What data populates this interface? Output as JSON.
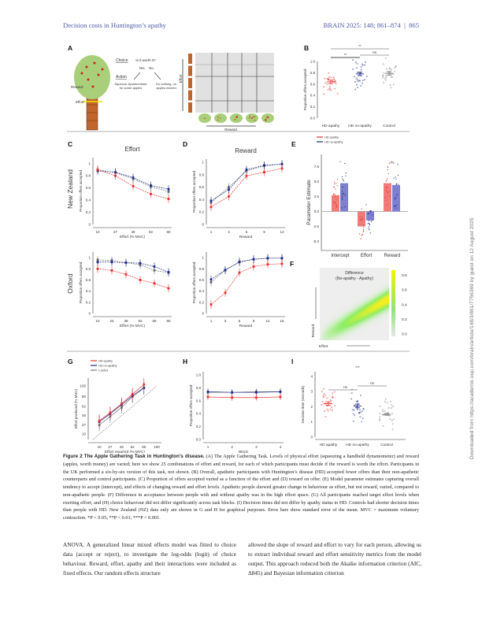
{
  "header": {
    "running_title": "Decision costs in Huntington’s apathy",
    "journal": "BRAIN 2025: 148; 861–874",
    "separator": "|",
    "page": "865"
  },
  "side_note": "Downloaded from https://academic.oup.com/brain/article/148/3/861/7756369 by guest on 12 August 2025",
  "colors": {
    "apathy": "#e8312f",
    "no_apathy": "#1f2a8a",
    "control": "#7a7a7a",
    "header": "#4f5aa8"
  },
  "legend": [
    "HD apathy",
    "HD no-apathy",
    "Control"
  ],
  "panel_letters": [
    "A",
    "B",
    "C",
    "D",
    "E",
    "F",
    "G",
    "H",
    "I"
  ],
  "panel_a": {
    "choice": "Choice",
    "question": "Is it worth it?",
    "yes": "Yes",
    "no": "No",
    "action": "Action",
    "action_yes": "Squeeze dynamometer for some apples",
    "action_no": "Do nothing, no apples earned",
    "reward": "Reward",
    "effort": "Effort",
    "grid_effort": "Effort",
    "grid_reward": "Reward"
  },
  "row_labels": {
    "nz": "New Zealand",
    "oxford": "Oxford"
  },
  "chart_data": [
    {
      "id": "B",
      "type": "scatter",
      "ylabel": "Proportion offers accepted",
      "ylim": [
        0,
        1
      ],
      "yticks": [
        "0.0",
        "0.2",
        "0.4",
        "0.6",
        "0.8",
        "1.0"
      ],
      "categories": [
        "HD apathy",
        "HD no-apathy",
        "Control"
      ],
      "means": [
        0.64,
        0.78,
        0.79
      ],
      "sem": [
        0.03,
        0.03,
        0.03
      ],
      "significance": [
        {
          "pair": [
            0,
            2
          ],
          "label": "**"
        },
        {
          "pair": [
            0,
            1
          ],
          "label": "**"
        },
        {
          "pair": [
            1,
            2
          ],
          "label": "ns"
        }
      ]
    },
    {
      "id": "C-NZ",
      "type": "line",
      "title": "Effort",
      "xlabel": "Effort (% MVC)",
      "ylabel": "Proportion offers accepted",
      "x": [
        10,
        27,
        45,
        62,
        80
      ],
      "ylim": [
        0,
        1.1
      ],
      "yticks": [
        "0",
        "0.2",
        "0.4",
        "0.6",
        "0.8",
        "1"
      ],
      "series": [
        {
          "name": "HD apathy",
          "values": [
            0.9,
            0.8,
            0.63,
            0.5,
            0.42
          ]
        },
        {
          "name": "HD no-apathy",
          "values": [
            0.88,
            0.86,
            0.77,
            0.64,
            0.58
          ]
        },
        {
          "name": "Control",
          "values": [
            0.9,
            0.85,
            0.75,
            0.62,
            0.54
          ]
        }
      ]
    },
    {
      "id": "D-NZ",
      "type": "line",
      "title": "Reward",
      "xlabel": "Reward",
      "ylabel": "Proportion offers accepted",
      "x": [
        1,
        3,
        6,
        9,
        12
      ],
      "ylim": [
        0,
        1.05
      ],
      "yticks": [
        "0",
        "0.2",
        "0.4",
        "0.6",
        "0.8",
        "1"
      ],
      "series": [
        {
          "name": "HD apathy",
          "values": [
            0.28,
            0.45,
            0.78,
            0.84,
            0.9
          ]
        },
        {
          "name": "HD no-apathy",
          "values": [
            0.38,
            0.56,
            0.88,
            0.95,
            0.97
          ]
        },
        {
          "name": "Control",
          "values": [
            0.35,
            0.6,
            0.86,
            0.94,
            0.97
          ]
        }
      ]
    },
    {
      "id": "E",
      "type": "bar",
      "ylabel": "Parameter Estimate",
      "categories": [
        "Intercept",
        "Effort",
        "Reward"
      ],
      "ylim": [
        -6.5,
        9.5
      ],
      "yticks": [
        "-5.0",
        "-2.5",
        "0.0",
        "2.5",
        "5.0",
        "7.5"
      ],
      "series": [
        {
          "name": "HD apathy",
          "values": [
            2.7,
            -2.5,
            4.7
          ]
        },
        {
          "name": "HD no-apathy",
          "values": [
            4.7,
            -1.5,
            4.4
          ]
        }
      ],
      "significance": [
        "*",
        "*",
        "ns"
      ]
    },
    {
      "id": "C-Oxford",
      "type": "line",
      "xlabel": "Effort (% MVC)",
      "ylabel": "Proportion offers accepted",
      "x": [
        10,
        24,
        38,
        52,
        66,
        80
      ],
      "ylim": [
        0,
        1.1
      ],
      "yticks": [
        "0",
        "0.2",
        "0.4",
        "0.6",
        "0.8",
        "1"
      ],
      "series": [
        {
          "name": "HD apathy",
          "values": [
            0.8,
            0.77,
            0.7,
            0.6,
            0.54,
            0.45
          ]
        },
        {
          "name": "HD no-apathy",
          "values": [
            0.92,
            0.92,
            0.91,
            0.9,
            0.84,
            0.74
          ]
        },
        {
          "name": "Control",
          "values": [
            0.96,
            0.95,
            0.91,
            0.87,
            0.77,
            0.73
          ]
        }
      ]
    },
    {
      "id": "D-Oxford",
      "type": "line",
      "xlabel": "Reward",
      "ylabel": "Proportion offers accepted",
      "x": [
        1,
        3,
        6,
        9,
        12,
        15
      ],
      "ylim": [
        0,
        1.1
      ],
      "yticks": [
        "0",
        "0.2",
        "0.4",
        "0.6",
        "0.8",
        "1"
      ],
      "series": [
        {
          "name": "HD apathy",
          "values": [
            0.16,
            0.37,
            0.73,
            0.84,
            0.88,
            0.89
          ]
        },
        {
          "name": "HD no-apathy",
          "values": [
            0.61,
            0.78,
            0.92,
            0.97,
            0.99,
            0.99
          ]
        },
        {
          "name": "Control",
          "values": [
            0.56,
            0.77,
            0.93,
            0.97,
            0.99,
            0.99
          ]
        }
      ]
    },
    {
      "id": "F",
      "type": "heatmap",
      "title": "Difference",
      "subtitle": "(No-apathy - Apathy)",
      "xlabel": "Effort",
      "ylabel": "Reward",
      "colorbar_ticks": [
        "0.0",
        "0.2",
        "0.4",
        "0.6",
        "0.8"
      ],
      "zlim": [
        0,
        0.85
      ]
    },
    {
      "id": "G",
      "type": "line",
      "xlabel": "Effort required (% MVC)",
      "ylabel": "Effort produced (% MVC)",
      "x": [
        10,
        27,
        45,
        62,
        80
      ],
      "xticks": [
        "10",
        "27",
        "45",
        "62",
        "80",
        "100"
      ],
      "yticks": [
        "10",
        "27",
        "45",
        "62",
        "80",
        "100"
      ],
      "xlim": [
        0,
        105
      ],
      "ylim": [
        0,
        115
      ],
      "series": [
        {
          "name": "HD apathy",
          "values": [
            35,
            50,
            67,
            85,
            103
          ]
        },
        {
          "name": "HD no-apathy",
          "values": [
            33,
            48,
            65,
            82,
            97
          ]
        },
        {
          "name": "Control",
          "values": [
            27,
            43,
            60,
            80,
            96
          ]
        }
      ]
    },
    {
      "id": "H",
      "type": "line",
      "xlabel": "Block",
      "ylabel": "Proportion offers accepted",
      "x": [
        1,
        2,
        3,
        4
      ],
      "ylim": [
        0,
        1.05
      ],
      "yticks": [
        "0.0",
        "0.2",
        "0.4",
        "0.6",
        "0.8",
        "1.0"
      ],
      "series": [
        {
          "name": "HD apathy",
          "values": [
            0.66,
            0.65,
            0.65,
            0.66
          ]
        },
        {
          "name": "HD no-apathy",
          "values": [
            0.74,
            0.73,
            0.73,
            0.74
          ]
        },
        {
          "name": "Control",
          "values": [
            0.73,
            0.73,
            0.74,
            0.74
          ]
        }
      ]
    },
    {
      "id": "I",
      "type": "scatter",
      "ylabel": "Decision time (seconds)",
      "ylim": [
        0,
        4.3
      ],
      "yticks": [
        "0",
        "1",
        "2",
        "3",
        "4"
      ],
      "categories": [
        "HD apathy",
        "HD no-apathy",
        "Control"
      ],
      "means": [
        2.2,
        2.05,
        1.5
      ],
      "sem": [
        0.12,
        0.12,
        0.06
      ],
      "significance": [
        {
          "pair": [
            0,
            1
          ],
          "label": "ns"
        },
        {
          "pair": [
            1,
            2
          ],
          "label": "ns"
        },
        {
          "pair": [
            1,
            1
          ],
          "label": "***"
        }
      ]
    }
  ],
  "caption": {
    "title": "Figure 2  The Apple Gathering Task in Huntington’s disease.",
    "text": " (A) The Apple Gathering Task. Levels of physical effort (squeezing a handheld dynamometer) and reward (apples, worth money) are varied; here we show 25 combinations of effort and reward, for each of which participants must decide if the reward is worth the effort. Participants in the UK performed a six-by-six version of this task, not shown. (B) Overall, apathetic participants with Huntington’s disease (HD) accepted fewer offers than their non-apathetic counterparts and control participants. (C) Proportion of offers accepted varied as a function of the effort and (D) reward on offer. (E) Model parameter estimates capturing overall tendency to accept (intercept), and effects of changing reward and effort levels. Apathetic people showed greater change in behaviour as effort, but not reward, varied, compared to non-apathetic people. (F) Difference in acceptance between people with and without apathy was in the high effort space. (G) All participants reached target effort levels when exerting effort, and (H) choice behaviour did not differ significantly across task blocks. (I) Decision times did not differ by apathy status in HD. Controls had shorter decision times than people with HD. New Zealand (NZ) data only are shown in G and H for graphical purposes. Error bars show standard error of the mean. MVC = maximum voluntary contraction. *P < 0.05; **P < 0.01; ***P < 0.001."
  },
  "body": {
    "col1": "ANOVA. A generalized linear mixed effects model was fitted to choice data (accept or reject), to investigate the log-odds (logit) of choice behaviour. Reward, effort, apathy and their interactions were included as fixed effects. Our random effects structure",
    "col2": "allowed the slope of reward and effort to vary for each person, allowing us to extract individual reward and effort sensitivity metrics from the model output. This approach reduced both the Akaike information criterion (AIC, Δ845) and Bayesian information criterion"
  }
}
